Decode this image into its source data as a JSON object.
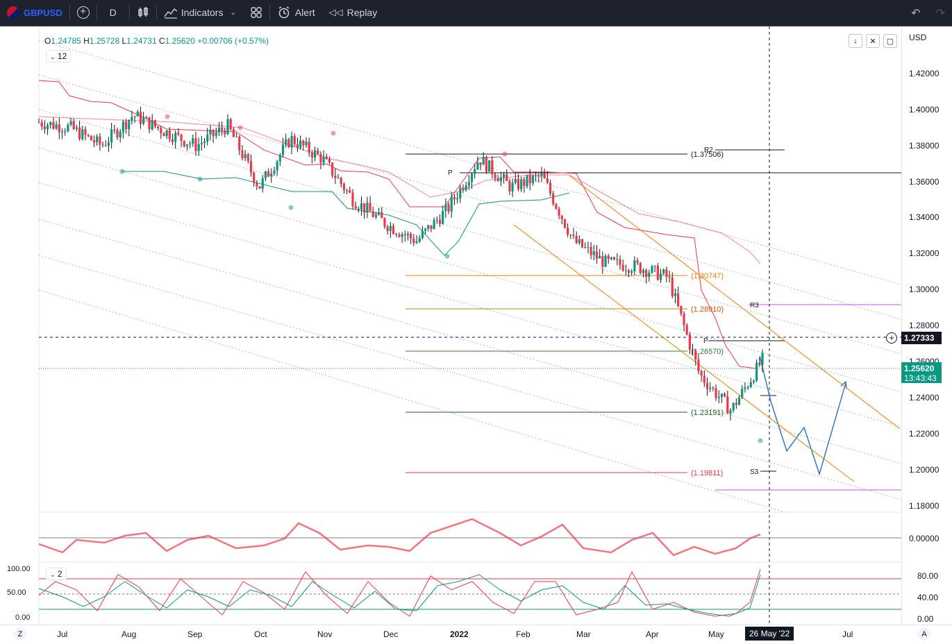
{
  "toolbar": {
    "symbol": "GBPUSD",
    "interval": "D",
    "indicators_label": "Indicators",
    "alert_label": "Alert",
    "replay_label": "Replay"
  },
  "legend": {
    "open_key": "O",
    "open": "1.24785",
    "high_key": "H",
    "high": "1.25728",
    "low_key": "L",
    "low": "1.24731",
    "close_key": "C",
    "close": "1.25620",
    "change": "+0.00706 (+0.57%)"
  },
  "main_pane": {
    "stepper_value": "12",
    "currency": "USD"
  },
  "price_axis": [
    "1.42000",
    "1.40000",
    "1.38000",
    "1.36000",
    "1.34000",
    "1.32000",
    "1.30000",
    "1.28000",
    "1.26000",
    "1.24000",
    "1.22000",
    "1.20000",
    "1.18000"
  ],
  "current_price": "1.25620",
  "countdown": "13:43:43",
  "crosshair_price": "1.27333",
  "fib_levels": [
    "(1.37506)",
    "(1.30747)",
    "(1.28910)",
    "(1.26570)",
    "(1.23191)",
    "(1.19811)"
  ],
  "pivot_labels": {
    "r2": "R2",
    "r3": "R3",
    "p": "P",
    "p2": "P",
    "s3": "S3"
  },
  "osc1": {
    "value": "0.00000"
  },
  "osc2": {
    "stepper_value": "2",
    "left_labels": [
      "100.00",
      "50.00",
      "0.00"
    ],
    "right_labels": [
      "80.00",
      "40.00",
      "0.00"
    ]
  },
  "time_axis": [
    "Jul",
    "Aug",
    "Sep",
    "Oct",
    "Nov",
    "Dec",
    "2022",
    "Feb",
    "Mar",
    "Apr",
    "May",
    "Jul"
  ],
  "crosshair_date": "26 May '22",
  "corner_left": "Z",
  "corner_right": "A",
  "colors": {
    "up": "#089981",
    "down": "#f23645",
    "pivot": "#e040fb",
    "fib_orange": "#f57c00"
  },
  "chart_data": {
    "type": "candlestick",
    "ylim": [
      1.175,
      1.43
    ],
    "x": [
      "2021-06-15",
      "2021-07-01",
      "2021-07-15",
      "2021-08-01",
      "2021-08-15",
      "2021-09-01",
      "2021-09-15",
      "2021-10-01",
      "2021-10-15",
      "2021-11-01",
      "2021-11-15",
      "2021-12-01",
      "2021-12-15",
      "2022-01-01",
      "2022-01-15",
      "2022-02-01",
      "2022-02-15",
      "2022-03-01",
      "2022-03-15",
      "2022-04-01",
      "2022-04-15",
      "2022-05-01",
      "2022-05-15",
      "2022-05-26"
    ],
    "close": [
      1.388,
      1.385,
      1.375,
      1.392,
      1.383,
      1.375,
      1.386,
      1.352,
      1.379,
      1.368,
      1.345,
      1.332,
      1.322,
      1.34,
      1.368,
      1.352,
      1.358,
      1.322,
      1.31,
      1.308,
      1.302,
      1.248,
      1.228,
      1.256
    ]
  }
}
